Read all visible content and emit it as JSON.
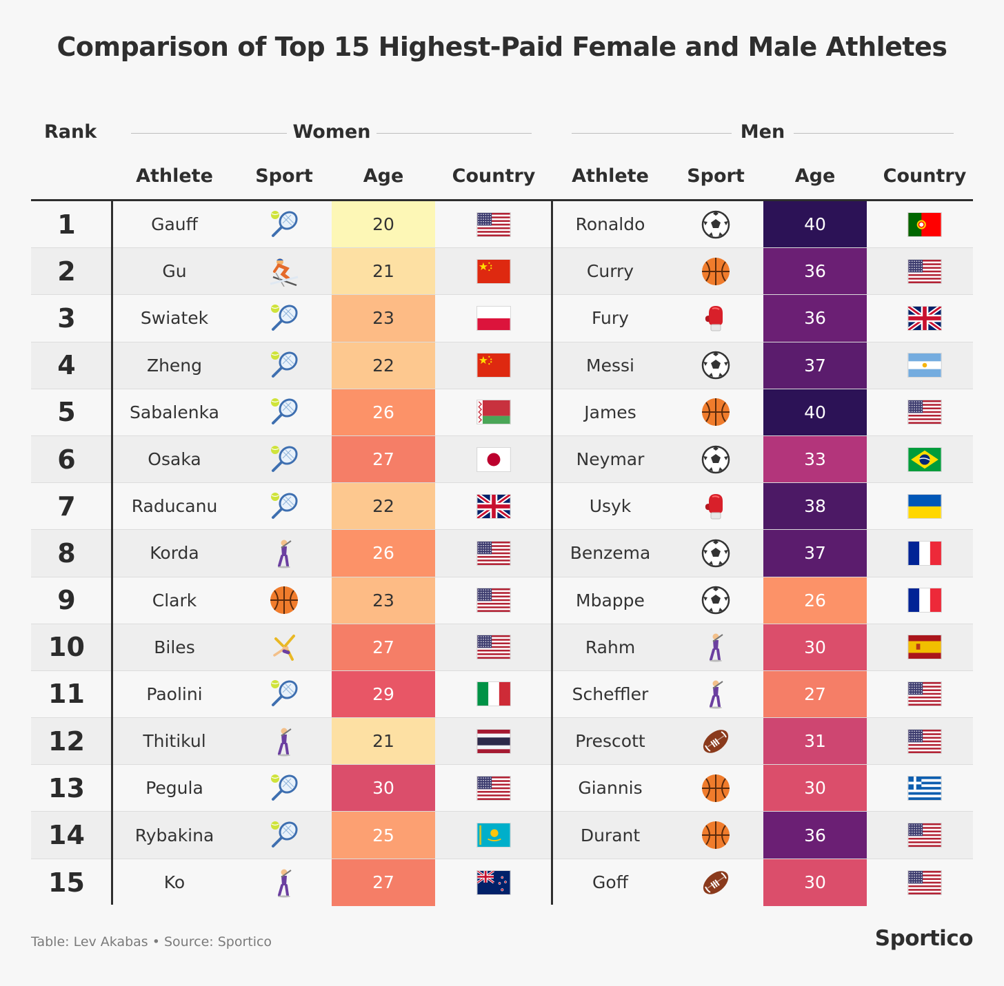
{
  "title": "Comparison of Top 15 Highest-Paid Female and Male Athletes",
  "headers": {
    "rank": "Rank",
    "women": "Women",
    "men": "Men",
    "athlete": "Athlete",
    "sport": "Sport",
    "age": "Age",
    "country": "Country"
  },
  "footer": "Table: Lev Akabas • Source: Sportico",
  "brand": "Sportico",
  "chart_data": {
    "type": "table",
    "title": "Comparison of Top 15 Highest-Paid Female and Male Athletes",
    "columns": [
      "Rank",
      "Women Athlete",
      "Women Sport",
      "Women Age",
      "Women Country",
      "Men Athlete",
      "Men Sport",
      "Men Age",
      "Men Country"
    ],
    "rows": [
      {
        "rank": 1,
        "women": {
          "athlete": "Gauff",
          "sport": "tennis-icon",
          "age": 20,
          "country": "flag-usa"
        },
        "men": {
          "athlete": "Ronaldo",
          "sport": "soccer-icon",
          "age": 40,
          "country": "flag-portugal"
        }
      },
      {
        "rank": 2,
        "women": {
          "athlete": "Gu",
          "sport": "skiing-icon",
          "age": 21,
          "country": "flag-china"
        },
        "men": {
          "athlete": "Curry",
          "sport": "basketball-icon",
          "age": 36,
          "country": "flag-usa"
        }
      },
      {
        "rank": 3,
        "women": {
          "athlete": "Swiatek",
          "sport": "tennis-icon",
          "age": 23,
          "country": "flag-poland"
        },
        "men": {
          "athlete": "Fury",
          "sport": "boxing-icon",
          "age": 36,
          "country": "flag-uk"
        }
      },
      {
        "rank": 4,
        "women": {
          "athlete": "Zheng",
          "sport": "tennis-icon",
          "age": 22,
          "country": "flag-china"
        },
        "men": {
          "athlete": "Messi",
          "sport": "soccer-icon",
          "age": 37,
          "country": "flag-argentina"
        }
      },
      {
        "rank": 5,
        "women": {
          "athlete": "Sabalenka",
          "sport": "tennis-icon",
          "age": 26,
          "country": "flag-belarus"
        },
        "men": {
          "athlete": "James",
          "sport": "basketball-icon",
          "age": 40,
          "country": "flag-usa"
        }
      },
      {
        "rank": 6,
        "women": {
          "athlete": "Osaka",
          "sport": "tennis-icon",
          "age": 27,
          "country": "flag-japan"
        },
        "men": {
          "athlete": "Neymar",
          "sport": "soccer-icon",
          "age": 33,
          "country": "flag-brazil"
        }
      },
      {
        "rank": 7,
        "women": {
          "athlete": "Raducanu",
          "sport": "tennis-icon",
          "age": 22,
          "country": "flag-uk"
        },
        "men": {
          "athlete": "Usyk",
          "sport": "boxing-icon",
          "age": 38,
          "country": "flag-ukraine"
        }
      },
      {
        "rank": 8,
        "women": {
          "athlete": "Korda",
          "sport": "golf-icon",
          "age": 26,
          "country": "flag-usa"
        },
        "men": {
          "athlete": "Benzema",
          "sport": "soccer-icon",
          "age": 37,
          "country": "flag-france"
        }
      },
      {
        "rank": 9,
        "women": {
          "athlete": "Clark",
          "sport": "basketball-icon",
          "age": 23,
          "country": "flag-usa"
        },
        "men": {
          "athlete": "Mbappe",
          "sport": "soccer-icon",
          "age": 26,
          "country": "flag-france"
        }
      },
      {
        "rank": 10,
        "women": {
          "athlete": "Biles",
          "sport": "gymnastics-icon",
          "age": 27,
          "country": "flag-usa"
        },
        "men": {
          "athlete": "Rahm",
          "sport": "golf-icon",
          "age": 30,
          "country": "flag-spain"
        }
      },
      {
        "rank": 11,
        "women": {
          "athlete": "Paolini",
          "sport": "tennis-icon",
          "age": 29,
          "country": "flag-italy"
        },
        "men": {
          "athlete": "Scheffler",
          "sport": "golf-icon",
          "age": 27,
          "country": "flag-usa"
        }
      },
      {
        "rank": 12,
        "women": {
          "athlete": "Thitikul",
          "sport": "golf-icon",
          "age": 21,
          "country": "flag-thailand"
        },
        "men": {
          "athlete": "Prescott",
          "sport": "football-icon",
          "age": 31,
          "country": "flag-usa"
        }
      },
      {
        "rank": 13,
        "women": {
          "athlete": "Pegula",
          "sport": "tennis-icon",
          "age": 30,
          "country": "flag-usa"
        },
        "men": {
          "athlete": "Giannis",
          "sport": "basketball-icon",
          "age": 30,
          "country": "flag-greece"
        }
      },
      {
        "rank": 14,
        "women": {
          "athlete": "Rybakina",
          "sport": "tennis-icon",
          "age": 25,
          "country": "flag-kazakhstan"
        },
        "men": {
          "athlete": "Durant",
          "sport": "basketball-icon",
          "age": 36,
          "country": "flag-usa"
        }
      },
      {
        "rank": 15,
        "women": {
          "athlete": "Ko",
          "sport": "golf-icon",
          "age": 27,
          "country": "flag-new-zealand"
        },
        "men": {
          "athlete": "Goff",
          "sport": "football-icon",
          "age": 30,
          "country": "flag-usa"
        }
      }
    ],
    "age_color_scale": [
      {
        "age": 20,
        "color": "#fdf7b6"
      },
      {
        "age": 22,
        "color": "#fdc88f"
      },
      {
        "age": 26,
        "color": "#fc9268"
      },
      {
        "age": 29,
        "color": "#e85666"
      },
      {
        "age": 33,
        "color": "#b3357b"
      },
      {
        "age": 36,
        "color": "#6b1f74"
      },
      {
        "age": 40,
        "color": "#2c1256"
      }
    ]
  }
}
